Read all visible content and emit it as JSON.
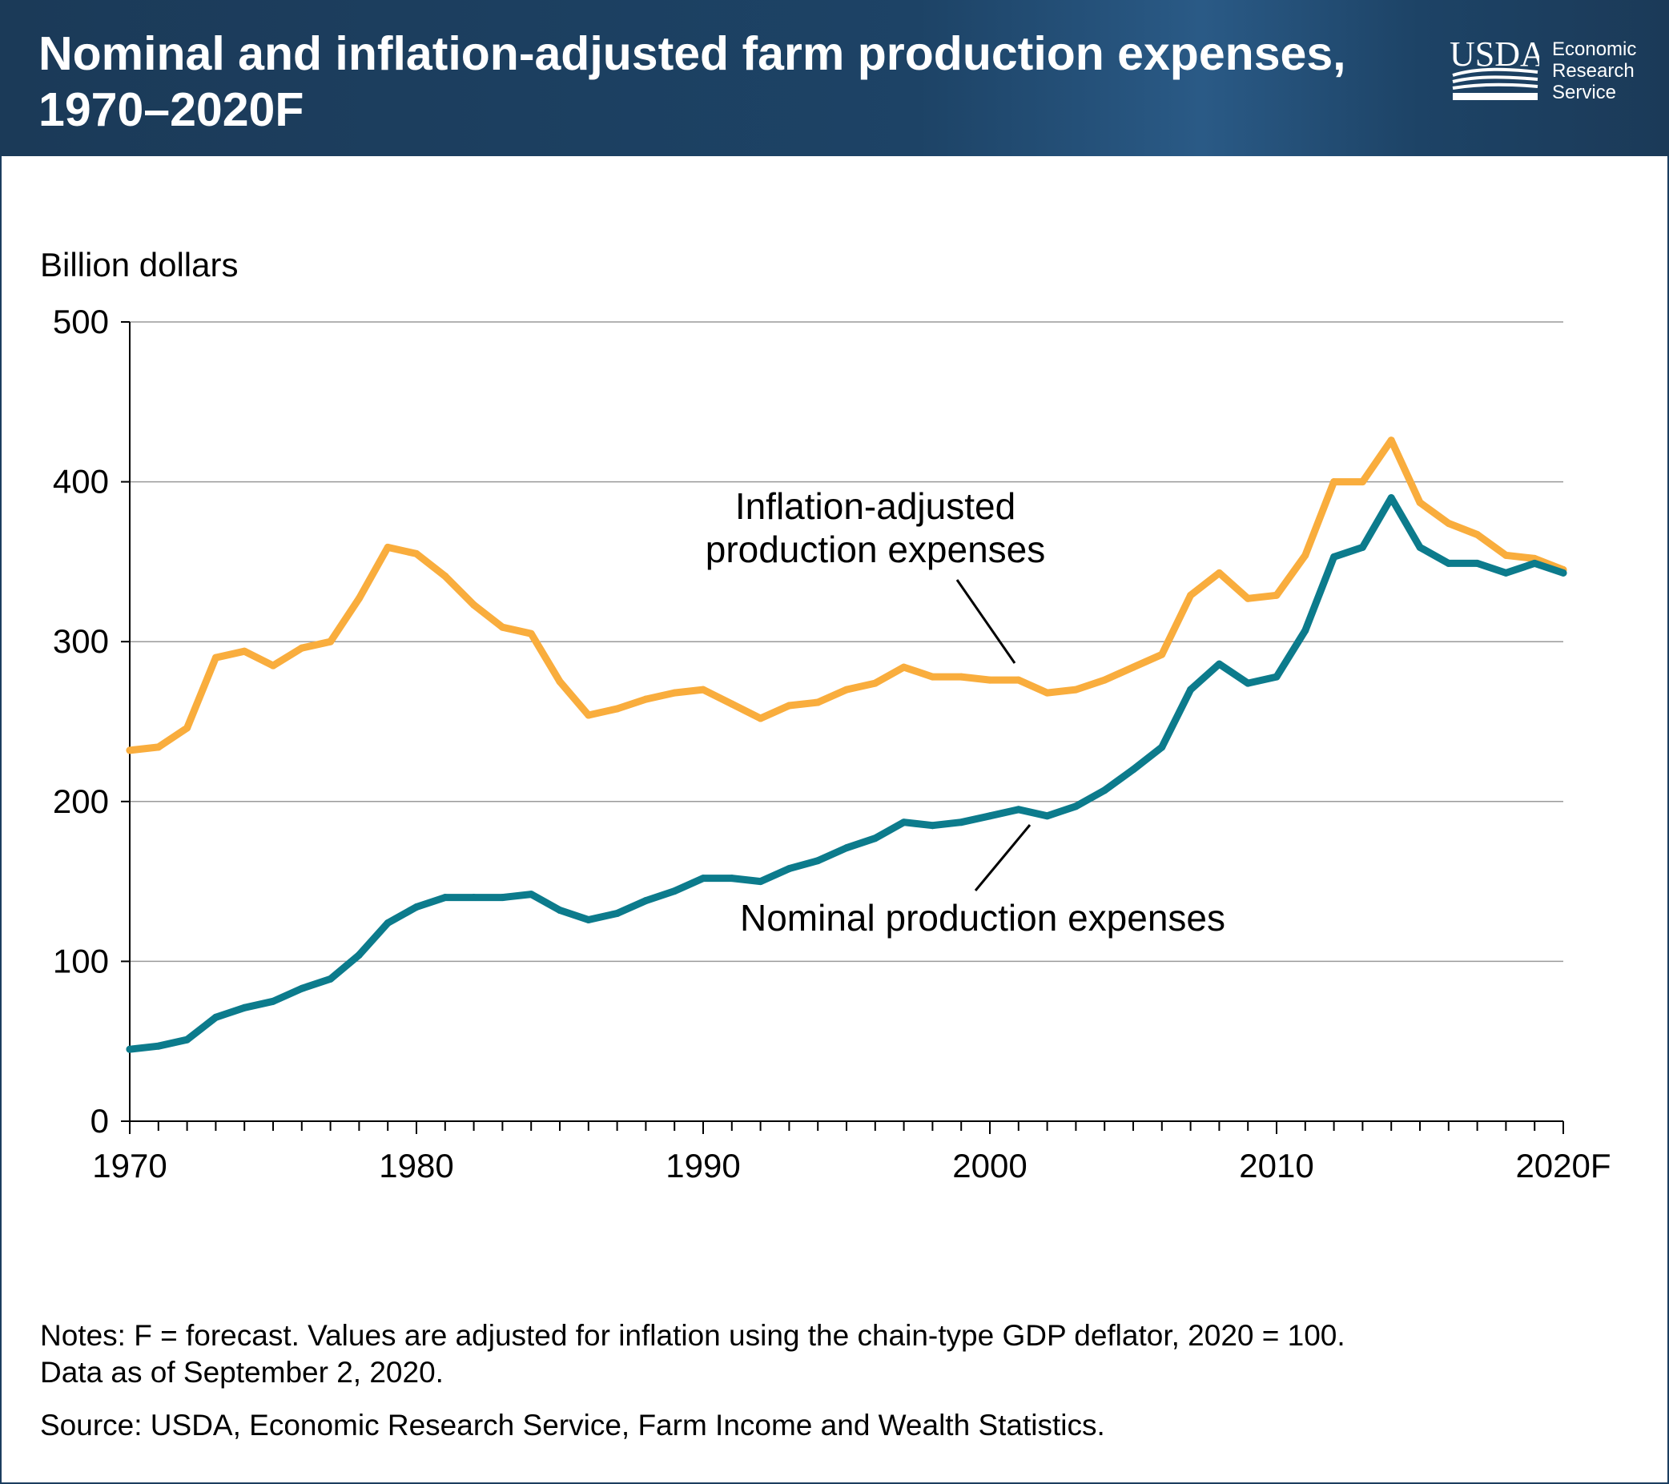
{
  "header": {
    "title": "Nominal and inflation-adjusted farm production expenses, 1970–2020F",
    "logo_mark": "USDA",
    "logo_lines": [
      "Economic",
      "Research",
      "Service"
    ]
  },
  "chart_data": {
    "type": "line",
    "title": "Nominal and inflation-adjusted farm production expenses, 1970–2020F",
    "ylabel": "Billion dollars",
    "xlabel": "",
    "ylim": [
      0,
      500
    ],
    "xlim": [
      1970,
      2020
    ],
    "yticks": [
      0,
      100,
      200,
      300,
      400,
      500
    ],
    "xticks": [
      {
        "value": 1970,
        "label": "1970"
      },
      {
        "value": 1980,
        "label": "1980"
      },
      {
        "value": 1990,
        "label": "1990"
      },
      {
        "value": 2000,
        "label": "2000"
      },
      {
        "value": 2010,
        "label": "2010"
      },
      {
        "value": 2020,
        "label": "2020F"
      }
    ],
    "grid": true,
    "x": [
      1970,
      1971,
      1972,
      1973,
      1974,
      1975,
      1976,
      1977,
      1978,
      1979,
      1980,
      1981,
      1982,
      1983,
      1984,
      1985,
      1986,
      1987,
      1988,
      1989,
      1990,
      1991,
      1992,
      1993,
      1994,
      1995,
      1996,
      1997,
      1998,
      1999,
      2000,
      2001,
      2002,
      2003,
      2004,
      2005,
      2006,
      2007,
      2008,
      2009,
      2010,
      2011,
      2012,
      2013,
      2014,
      2015,
      2016,
      2017,
      2018,
      2019,
      2020
    ],
    "series": [
      {
        "name": "Inflation-adjusted production expenses",
        "color": "#f9ad3d",
        "values": [
          232,
          234,
          246,
          290,
          294,
          285,
          296,
          300,
          327,
          359,
          355,
          341,
          323,
          309,
          305,
          275,
          254,
          258,
          264,
          268,
          270,
          261,
          252,
          260,
          262,
          270,
          274,
          284,
          278,
          278,
          276,
          276,
          268,
          270,
          276,
          284,
          292,
          329,
          343,
          327,
          329,
          354,
          400,
          400,
          426,
          387,
          374,
          367,
          354,
          352,
          345
        ]
      },
      {
        "name": "Nominal production expenses",
        "color": "#0c7b8c",
        "values": [
          45,
          47,
          51,
          65,
          71,
          75,
          83,
          89,
          104,
          124,
          134,
          140,
          140,
          140,
          142,
          132,
          126,
          130,
          138,
          144,
          152,
          152,
          150,
          158,
          163,
          171,
          177,
          187,
          185,
          187,
          191,
          195,
          191,
          197,
          207,
          220,
          234,
          270,
          286,
          274,
          278,
          307,
          353,
          359,
          390,
          359,
          349,
          349,
          343,
          349,
          343
        ]
      }
    ],
    "annotations": [
      {
        "text_lines": [
          "Inflation-adjusted",
          "production expenses"
        ],
        "series": 0
      },
      {
        "text_lines": [
          "Nominal production expenses"
        ],
        "series": 1
      }
    ]
  },
  "notes": {
    "line1": "Notes: F = forecast. Values are adjusted for inflation using the chain-type GDP deflator, 2020 = 100.",
    "line2": "Data as of September 2, 2020.",
    "source": "Source: USDA, Economic Research Service, Farm Income and Wealth Statistics."
  }
}
